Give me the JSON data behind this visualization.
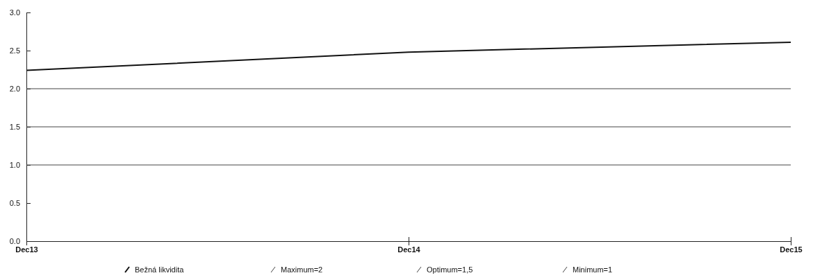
{
  "chart_data": {
    "type": "line",
    "categories": [
      "Dec13",
      "Dec14",
      "Dec15"
    ],
    "series": [
      {
        "name": "Bežná likvidita",
        "color": "#111111",
        "values": [
          2.24,
          2.48,
          2.61
        ]
      },
      {
        "name": "Maximum=2",
        "color": "#444444",
        "values": [
          2,
          2,
          2
        ]
      },
      {
        "name": "Optimum=1,5",
        "color": "#444444",
        "values": [
          1.5,
          1.5,
          1.5
        ]
      },
      {
        "name": "Minimum=1",
        "color": "#444444",
        "values": [
          1,
          1,
          1
        ]
      }
    ],
    "ylim": [
      0,
      3
    ],
    "yticks": [
      {
        "value": 0,
        "label": "0.0"
      },
      {
        "value": 0.5,
        "label": "0.5"
      },
      {
        "value": 1,
        "label": "1.0"
      },
      {
        "value": 1.5,
        "label": "1.5"
      },
      {
        "value": 2,
        "label": "2.0"
      },
      {
        "value": 2.5,
        "label": "2.5"
      },
      {
        "value": 3,
        "label": "3.0"
      }
    ],
    "legend": "bottom",
    "marker": "none",
    "line_style": "solid"
  }
}
